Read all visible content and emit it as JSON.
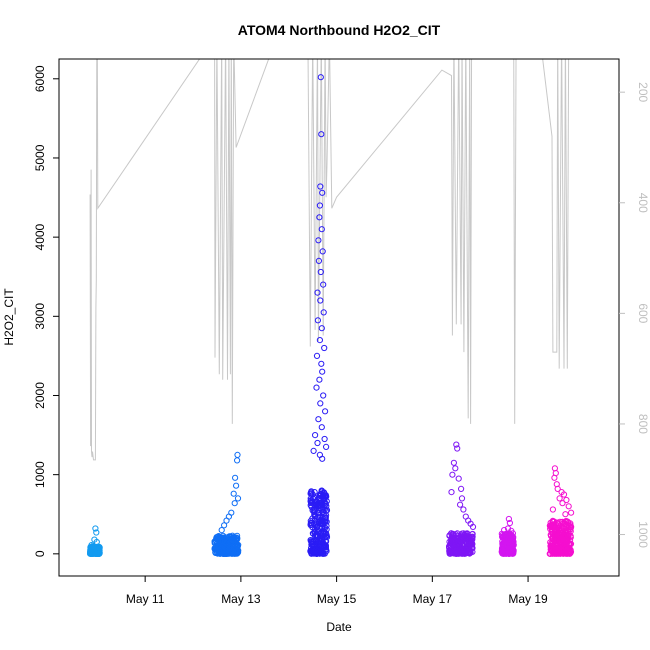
{
  "chart_data": {
    "type": "scatter",
    "title": "ATOM4 Northbound H2O2_CIT",
    "xlabel": "Date",
    "ylabel": "H2O2_CIT",
    "x_ticks": [
      {
        "day": 11,
        "label": "May 11"
      },
      {
        "day": 13,
        "label": "May 13"
      },
      {
        "day": 15,
        "label": "May 15"
      },
      {
        "day": 17,
        "label": "May 17"
      },
      {
        "day": 19,
        "label": "May 19"
      }
    ],
    "xlim": [
      9.2,
      20.9
    ],
    "ylim": [
      -280,
      6250
    ],
    "y_ticks": [
      0,
      1000,
      2000,
      3000,
      4000,
      5000,
      6000
    ],
    "right_axis": {
      "ylim_inverted": [
        1075,
        140
      ],
      "ticks": [
        200,
        400,
        600,
        800,
        1000
      ],
      "color": "#bfbfbf"
    },
    "scatter_clusters": [
      {
        "x_start": 9.85,
        "x_end": 10.05,
        "color": "#139bf0",
        "base_max": 90,
        "peaks": [
          [
            9.96,
            320
          ],
          [
            9.98,
            270
          ],
          [
            9.94,
            180
          ],
          [
            9.99,
            150
          ],
          [
            9.88,
            110
          ],
          [
            9.91,
            100
          ]
        ]
      },
      {
        "x_start": 12.45,
        "x_end": 12.95,
        "color": "#0f6ef5",
        "base_max": 230,
        "peaks": [
          [
            12.93,
            1250
          ],
          [
            12.92,
            1180
          ],
          [
            12.88,
            960
          ],
          [
            12.9,
            860
          ],
          [
            12.85,
            760
          ],
          [
            12.94,
            700
          ],
          [
            12.87,
            640
          ],
          [
            12.8,
            520
          ],
          [
            12.75,
            470
          ],
          [
            12.7,
            420
          ],
          [
            12.65,
            360
          ],
          [
            12.6,
            300
          ]
        ]
      },
      {
        "x_start": 14.45,
        "x_end": 14.8,
        "color": "#2a1cf5",
        "base_max": 800,
        "peaks": [
          [
            14.67,
            6020
          ],
          [
            14.68,
            5300
          ],
          [
            14.66,
            4640
          ],
          [
            14.7,
            4560
          ],
          [
            14.65,
            4400
          ],
          [
            14.64,
            4250
          ],
          [
            14.69,
            4100
          ],
          [
            14.62,
            3960
          ],
          [
            14.71,
            3820
          ],
          [
            14.63,
            3700
          ],
          [
            14.67,
            3560
          ],
          [
            14.72,
            3400
          ],
          [
            14.6,
            3300
          ],
          [
            14.66,
            3200
          ],
          [
            14.73,
            3050
          ],
          [
            14.61,
            2950
          ],
          [
            14.69,
            2850
          ],
          [
            14.65,
            2700
          ],
          [
            14.74,
            2600
          ],
          [
            14.59,
            2500
          ],
          [
            14.68,
            2400
          ],
          [
            14.7,
            2300
          ],
          [
            14.64,
            2200
          ],
          [
            14.58,
            2100
          ],
          [
            14.72,
            2000
          ],
          [
            14.66,
            1900
          ],
          [
            14.76,
            1800
          ],
          [
            14.62,
            1700
          ],
          [
            14.69,
            1600
          ],
          [
            14.55,
            1500
          ],
          [
            14.75,
            1450
          ],
          [
            14.6,
            1400
          ],
          [
            14.78,
            1350
          ],
          [
            14.52,
            1300
          ],
          [
            14.65,
            1250
          ],
          [
            14.7,
            1200
          ]
        ]
      },
      {
        "x_start": 17.35,
        "x_end": 17.85,
        "color": "#7f16f5",
        "base_max": 260,
        "peaks": [
          [
            17.5,
            1380
          ],
          [
            17.52,
            1330
          ],
          [
            17.45,
            1150
          ],
          [
            17.48,
            1080
          ],
          [
            17.42,
            1000
          ],
          [
            17.55,
            950
          ],
          [
            17.6,
            820
          ],
          [
            17.4,
            780
          ],
          [
            17.62,
            700
          ],
          [
            17.58,
            620
          ],
          [
            17.65,
            560
          ],
          [
            17.7,
            470
          ],
          [
            17.75,
            420
          ],
          [
            17.8,
            380
          ],
          [
            17.85,
            340
          ]
        ]
      },
      {
        "x_start": 18.45,
        "x_end": 18.7,
        "color": "#d316f0",
        "base_max": 260,
        "peaks": [
          [
            18.6,
            440
          ],
          [
            18.62,
            390
          ],
          [
            18.58,
            320
          ],
          [
            18.5,
            300
          ],
          [
            18.65,
            290
          ]
        ]
      },
      {
        "x_start": 19.45,
        "x_end": 19.9,
        "color": "#f50fcf",
        "base_max": 420,
        "peaks": [
          [
            19.56,
            1080
          ],
          [
            19.58,
            1020
          ],
          [
            19.55,
            960
          ],
          [
            19.6,
            880
          ],
          [
            19.62,
            820
          ],
          [
            19.7,
            780
          ],
          [
            19.75,
            750
          ],
          [
            19.66,
            700
          ],
          [
            19.8,
            680
          ],
          [
            19.72,
            640
          ],
          [
            19.85,
            600
          ],
          [
            19.52,
            560
          ],
          [
            19.9,
            520
          ],
          [
            19.78,
            500
          ]
        ]
      }
    ],
    "gray_line": {
      "color": "#c8c8c8",
      "points": [
        [
          9.85,
          385
        ],
        [
          9.86,
          840
        ],
        [
          9.87,
          340
        ],
        [
          9.88,
          850
        ],
        [
          9.89,
          860
        ],
        [
          9.9,
          850
        ],
        [
          9.92,
          865
        ],
        [
          9.94,
          865
        ],
        [
          9.96,
          865
        ],
        [
          9.97,
          590
        ],
        [
          9.98,
          540
        ],
        [
          9.99,
          100
        ],
        [
          10.0,
          100
        ],
        [
          10.01,
          410
        ],
        [
          12.45,
          100
        ],
        [
          12.46,
          680
        ],
        [
          12.5,
          100
        ],
        [
          12.55,
          710
        ],
        [
          12.6,
          100
        ],
        [
          12.62,
          720
        ],
        [
          12.68,
          100
        ],
        [
          12.72,
          720
        ],
        [
          12.75,
          100
        ],
        [
          12.78,
          710
        ],
        [
          12.8,
          100
        ],
        [
          12.82,
          800
        ],
        [
          12.85,
          100
        ],
        [
          12.9,
          300
        ],
        [
          13.75,
          100
        ],
        [
          14.4,
          100
        ],
        [
          14.45,
          660
        ],
        [
          14.5,
          100
        ],
        [
          14.55,
          630
        ],
        [
          14.6,
          100
        ],
        [
          14.62,
          650
        ],
        [
          14.68,
          100
        ],
        [
          14.72,
          640
        ],
        [
          14.76,
          100
        ],
        [
          14.78,
          390
        ],
        [
          14.8,
          330
        ],
        [
          14.85,
          100
        ],
        [
          14.9,
          410
        ],
        [
          15.0,
          390
        ],
        [
          17.2,
          160
        ],
        [
          17.4,
          170
        ],
        [
          17.42,
          640
        ],
        [
          17.45,
          100
        ],
        [
          17.5,
          620
        ],
        [
          17.55,
          100
        ],
        [
          17.6,
          620
        ],
        [
          17.62,
          100
        ],
        [
          17.66,
          670
        ],
        [
          17.7,
          100
        ],
        [
          17.75,
          790
        ],
        [
          17.78,
          100
        ],
        [
          17.8,
          800
        ],
        [
          17.82,
          100
        ],
        [
          17.85,
          100
        ],
        [
          18.7,
          100
        ],
        [
          18.72,
          800
        ],
        [
          18.75,
          100
        ],
        [
          19.25,
          100
        ],
        [
          19.5,
          280
        ],
        [
          19.52,
          670
        ],
        [
          19.55,
          670
        ],
        [
          19.6,
          670
        ],
        [
          19.62,
          100
        ],
        [
          19.65,
          700
        ],
        [
          19.7,
          100
        ],
        [
          19.75,
          700
        ],
        [
          19.78,
          100
        ],
        [
          19.82,
          700
        ],
        [
          19.85,
          100
        ],
        [
          19.9,
          100
        ]
      ]
    }
  }
}
